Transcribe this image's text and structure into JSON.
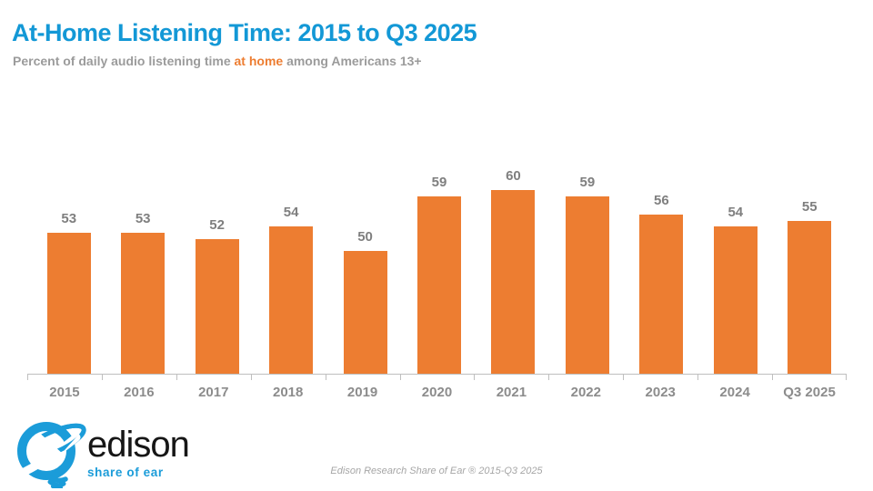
{
  "header": {
    "title": "At-Home Listening Time: 2015 to Q3 2025",
    "subtitle_prefix": "Percent of daily audio listening time ",
    "subtitle_highlight": "at home",
    "subtitle_suffix": " among Americans 13+"
  },
  "chart_data": {
    "type": "bar",
    "title": "At-Home Listening Time: 2015 to Q3 2025",
    "subtitle": "Percent of daily audio listening time at home among Americans 13+",
    "categories": [
      "2015",
      "2016",
      "2017",
      "2018",
      "2019",
      "2020",
      "2021",
      "2022",
      "2023",
      "2024",
      "Q3 2025"
    ],
    "values": [
      53,
      53,
      52,
      54,
      50,
      59,
      60,
      59,
      56,
      54,
      55
    ],
    "xlabel": "",
    "ylabel": "Percent of daily audio listening time at home",
    "ylim": [
      30,
      65
    ],
    "grid": false,
    "legend_position": "none",
    "value_labels_shown": true,
    "bar_color": "#ED7D31"
  },
  "logo": {
    "brand": "edison",
    "tagline": "share of ear"
  },
  "footer": {
    "credit": "Edison Research Share of Ear ® 2015-Q3 2025"
  },
  "colors": {
    "title_blue": "#1398D6",
    "logo_blue": "#1B9CD9",
    "bar_orange": "#ED7D31",
    "value_label_gray": "#7F7F7F",
    "axis_label_gray": "#8C8C8C",
    "subtitle_gray": "#9B9B9B",
    "axis_line_gray": "#BFBFBF",
    "footer_gray": "#A6A6A6"
  }
}
